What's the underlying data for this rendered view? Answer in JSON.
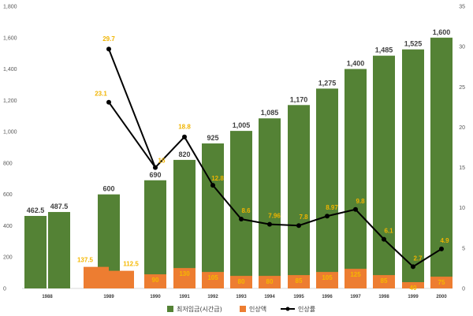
{
  "chart_data": {
    "type": "bar",
    "categories": [
      "1988",
      "1989",
      "1990",
      "1991",
      "1992",
      "1993",
      "1994",
      "1995",
      "1996",
      "1997",
      "1998",
      "1999",
      "2000"
    ],
    "left_axis": {
      "ylim": [
        0,
        1800
      ],
      "ticks": [
        "0",
        "200",
        "400",
        "600",
        "800",
        "1,000",
        "1,200",
        "1,400",
        "1,600",
        "1,800"
      ]
    },
    "right_axis": {
      "ylim": [
        0,
        35
      ],
      "ticks": [
        "0",
        "5",
        "10",
        "15",
        "20",
        "25",
        "30",
        "35"
      ]
    },
    "series": [
      {
        "name": "최저임금(시간급)",
        "kind": "bar",
        "color": "#548235",
        "points": [
          {
            "cat": "1988",
            "slot": 0,
            "value": 462.5,
            "label": "462.5"
          },
          {
            "cat": "1988",
            "slot": 1,
            "value": 487.5,
            "label": "487.5"
          },
          {
            "cat": "1989",
            "slot": 0,
            "value": 600,
            "label": "600"
          },
          {
            "cat": "1990",
            "slot": 0,
            "value": 690,
            "label": "690"
          },
          {
            "cat": "1991",
            "slot": 0,
            "value": 820,
            "label": "820"
          },
          {
            "cat": "1992",
            "slot": 0,
            "value": 925,
            "label": "925"
          },
          {
            "cat": "1993",
            "slot": 0,
            "value": 1005,
            "label": "1,005"
          },
          {
            "cat": "1994",
            "slot": 0,
            "value": 1085,
            "label": "1,085"
          },
          {
            "cat": "1995",
            "slot": 0,
            "value": 1170,
            "label": "1,170"
          },
          {
            "cat": "1996",
            "slot": 0,
            "value": 1275,
            "label": "1,275"
          },
          {
            "cat": "1997",
            "slot": 0,
            "value": 1400,
            "label": "1,400"
          },
          {
            "cat": "1998",
            "slot": 0,
            "value": 1485,
            "label": "1,485"
          },
          {
            "cat": "1999",
            "slot": 0,
            "value": 1525,
            "label": "1,525"
          },
          {
            "cat": "2000",
            "slot": 0,
            "value": 1600,
            "label": "1,600"
          }
        ]
      },
      {
        "name": "인상액",
        "kind": "bar",
        "color": "#ed7d31",
        "points": [
          {
            "cat": "1989",
            "slot": -1,
            "value": 137.5,
            "label": "137.5"
          },
          {
            "cat": "1989",
            "slot": 1,
            "value": 112.5,
            "label": "112.5"
          },
          {
            "cat": "1990",
            "slot": 0,
            "value": 90,
            "label": "90"
          },
          {
            "cat": "1991",
            "slot": 0,
            "value": 130,
            "label": "130"
          },
          {
            "cat": "1992",
            "slot": 0,
            "value": 105,
            "label": "105"
          },
          {
            "cat": "1993",
            "slot": 0,
            "value": 80,
            "label": "80"
          },
          {
            "cat": "1994",
            "slot": 0,
            "value": 80,
            "label": "80"
          },
          {
            "cat": "1995",
            "slot": 0,
            "value": 85,
            "label": "85"
          },
          {
            "cat": "1996",
            "slot": 0,
            "value": 105,
            "label": "105"
          },
          {
            "cat": "1997",
            "slot": 0,
            "value": 125,
            "label": "125"
          },
          {
            "cat": "1998",
            "slot": 0,
            "value": 85,
            "label": "85"
          },
          {
            "cat": "1999",
            "slot": 0,
            "value": 40,
            "label": "40"
          },
          {
            "cat": "2000",
            "slot": 0,
            "value": 75,
            "label": "75"
          }
        ]
      },
      {
        "name": "인상률",
        "kind": "line",
        "axis": "right",
        "color": "#000000",
        "points": [
          {
            "cat": "1989",
            "value": 29.7,
            "label": "29.7"
          },
          {
            "cat": "1989",
            "value": 23.1,
            "label": "23.1"
          },
          {
            "cat": "1990",
            "value": 15,
            "label": "15"
          },
          {
            "cat": "1991",
            "value": 18.8,
            "label": "18.8"
          },
          {
            "cat": "1992",
            "value": 12.8,
            "label": "12.8"
          },
          {
            "cat": "1993",
            "value": 8.6,
            "label": "8.6"
          },
          {
            "cat": "1994",
            "value": 7.96,
            "label": "7.96"
          },
          {
            "cat": "1995",
            "value": 7.8,
            "label": "7.8"
          },
          {
            "cat": "1996",
            "value": 8.97,
            "label": "8.97"
          },
          {
            "cat": "1997",
            "value": 9.8,
            "label": "9.8"
          },
          {
            "cat": "1998",
            "value": 6.1,
            "label": "6.1"
          },
          {
            "cat": "1999",
            "value": 2.7,
            "label": "2.7"
          },
          {
            "cat": "2000",
            "value": 4.9,
            "label": "4.9"
          }
        ]
      }
    ],
    "grid": false,
    "legend_position": "bottom"
  }
}
